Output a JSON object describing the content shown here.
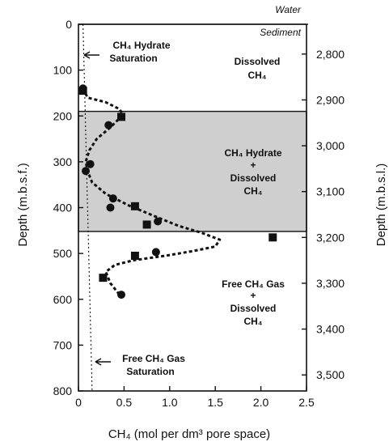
{
  "chart_data": {
    "type": "scatter",
    "title": "",
    "xlabel": "CH₄ (mol per dm³ pore space)",
    "ylabel_left": "Depth (m.b.s.f.)",
    "ylabel_right": "Depth (m.b.s.l.)",
    "xlim": [
      0,
      2.5
    ],
    "ylim": [
      0,
      800
    ],
    "y_reversed": true,
    "x_ticks": [
      "0",
      "0.5",
      "1.0",
      "1.5",
      "2.0",
      "2.5"
    ],
    "y_ticks_left": [
      "0",
      "100",
      "200",
      "300",
      "400",
      "500",
      "600",
      "700",
      "800"
    ],
    "y_ticks_right": [
      "2,800",
      "2,900",
      "3,000",
      "3,100",
      "3,200",
      "3,300",
      "3,400",
      "3,500"
    ],
    "right_axis_offset_m": 2735,
    "hydrate_zone": {
      "from_depth": 190,
      "to_depth": 452,
      "color": "#cfcfcf"
    },
    "sediment_line_depth": 0,
    "series": [
      {
        "name": "",
        "kind": "dashed-curve",
        "points": [
          [
            0.05,
            140
          ],
          [
            0.1,
            160
          ],
          [
            0.3,
            170
          ],
          [
            0.45,
            185
          ],
          [
            0.48,
            195
          ],
          [
            0.45,
            205
          ],
          [
            0.35,
            225
          ],
          [
            0.2,
            250
          ],
          [
            0.12,
            275
          ],
          [
            0.08,
            300
          ],
          [
            0.1,
            320
          ],
          [
            0.15,
            345
          ],
          [
            0.3,
            370
          ],
          [
            0.55,
            395
          ],
          [
            0.85,
            420
          ],
          [
            1.1,
            440
          ],
          [
            1.35,
            455
          ],
          [
            1.55,
            470
          ],
          [
            1.5,
            485
          ],
          [
            1.25,
            495
          ],
          [
            0.95,
            505
          ],
          [
            0.6,
            515
          ],
          [
            0.4,
            525
          ],
          [
            0.3,
            540
          ],
          [
            0.35,
            565
          ],
          [
            0.45,
            590
          ]
        ]
      },
      {
        "name": "",
        "kind": "circles",
        "points": [
          [
            0.05,
            140
          ],
          [
            0.33,
            220
          ],
          [
            0.13,
            305
          ],
          [
            0.08,
            320
          ],
          [
            0.38,
            380
          ],
          [
            0.35,
            400
          ],
          [
            0.87,
            430
          ],
          [
            0.85,
            497
          ],
          [
            0.47,
            590
          ]
        ]
      },
      {
        "name": "",
        "kind": "squares",
        "points": [
          [
            0.05,
            145
          ],
          [
            0.47,
            202
          ],
          [
            0.62,
            397
          ],
          [
            0.75,
            437
          ],
          [
            2.13,
            465
          ],
          [
            0.62,
            505
          ],
          [
            0.27,
            553
          ]
        ]
      },
      {
        "name": "",
        "kind": "dotted-line",
        "points": [
          [
            0.05,
            0
          ],
          [
            0.15,
            800
          ]
        ]
      }
    ],
    "annotations": {
      "water": "Water",
      "sediment": "Sediment",
      "hydrate_saturation": [
        "CH₄ Hydrate",
        "Saturation"
      ],
      "dissolved": [
        "Dissolved",
        "CH₄"
      ],
      "hydrate_dissolved": [
        "CH₄ Hydrate",
        "+",
        "Dissolved",
        "CH₄"
      ],
      "free_gas_dissolved": [
        "Free CH₄ Gas",
        "+",
        "Dissolved",
        "CH₄"
      ],
      "free_gas_saturation": [
        "Free CH₄ Gas",
        "Saturation"
      ]
    },
    "grid": false,
    "legend": "none"
  }
}
